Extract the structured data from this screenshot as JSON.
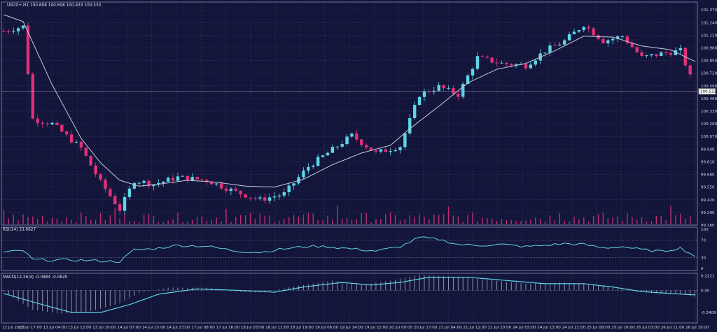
{
  "chart_data": {
    "type": "candlestick",
    "colors": {
      "background": "#13163a",
      "grid": "#3b4078",
      "up": "#5fd3e8",
      "down": "#e0307a",
      "ma": "#c8cad6",
      "rsi": "#5fd3e8",
      "macd_line": "#5fd3e8",
      "macd_hist": "#c8cad6",
      "price_box": "#ffffff"
    },
    "main": {
      "title": "USDX+,H1  100.608 100.608 100.433 100.533",
      "current_price": "100.533",
      "ylim": [
        99.16,
        101.45
      ],
      "y_ticks": [
        "101.370",
        "101.240",
        "101.110",
        "100.980",
        "100.850",
        "100.720",
        "100.590",
        "100.460",
        "100.330",
        "100.200",
        "100.070",
        "99.940",
        "99.810",
        "99.680",
        "99.550",
        "99.420",
        "99.290",
        "99.160"
      ],
      "grid": true
    },
    "x_ticks": [
      "12 Jul 2023",
      "12 Jul 17:00",
      "13 Jul 04:00",
      "13 Jul 12:00",
      "13 Jul 20:00",
      "14 Jul 07:00",
      "14 Jul 15:00",
      "14 Jul 23:00",
      "17 Jul 08:00",
      "17 Jul 16:00",
      "18 Jul 03:00",
      "18 Jul 11:00",
      "18 Jul 19:00",
      "19 Jul 06:00",
      "19 Jul 14:00",
      "19 Jul 22:00",
      "20 Jul 09:00",
      "20 Jul 17:00",
      "21 Jul 04:00",
      "21 Jul 12:00",
      "21 Jul 20:00",
      "24 Jul 05:00",
      "24 Jul 13:00",
      "24 Jul 21:00",
      "25 Jul 08:00",
      "25 Jul 16:00",
      "26 Jul 03:00",
      "26 Jul 11:00",
      "26 Jul 19:00"
    ],
    "price_path": [
      [
        0,
        101.15
      ],
      [
        4,
        101.2
      ],
      [
        6,
        100.25
      ],
      [
        10,
        100.2
      ],
      [
        16,
        99.95
      ],
      [
        20,
        99.6
      ],
      [
        24,
        99.32
      ],
      [
        27,
        99.62
      ],
      [
        31,
        99.58
      ],
      [
        36,
        99.65
      ],
      [
        42,
        99.62
      ],
      [
        48,
        99.5
      ],
      [
        53,
        99.42
      ],
      [
        58,
        99.48
      ],
      [
        63,
        99.76
      ],
      [
        67,
        99.9
      ],
      [
        72,
        100.08
      ],
      [
        77,
        99.9
      ],
      [
        82,
        99.97
      ],
      [
        86,
        100.5
      ],
      [
        90,
        100.58
      ],
      [
        94,
        100.5
      ],
      [
        98,
        100.88
      ],
      [
        103,
        100.82
      ],
      [
        108,
        100.8
      ],
      [
        112,
        100.95
      ],
      [
        116,
        101.05
      ],
      [
        120,
        101.22
      ],
      [
        124,
        101.05
      ],
      [
        128,
        101.1
      ],
      [
        132,
        100.88
      ],
      [
        136,
        100.92
      ],
      [
        140,
        100.95
      ],
      [
        143,
        100.55
      ]
    ],
    "ma_path": [
      [
        0,
        101.32
      ],
      [
        4,
        101.25
      ],
      [
        10,
        100.6
      ],
      [
        16,
        100.05
      ],
      [
        20,
        99.8
      ],
      [
        24,
        99.62
      ],
      [
        28,
        99.56
      ],
      [
        32,
        99.58
      ],
      [
        38,
        99.62
      ],
      [
        44,
        99.6
      ],
      [
        50,
        99.56
      ],
      [
        56,
        99.55
      ],
      [
        62,
        99.63
      ],
      [
        68,
        99.78
      ],
      [
        74,
        99.9
      ],
      [
        80,
        99.98
      ],
      [
        84,
        100.15
      ],
      [
        90,
        100.38
      ],
      [
        96,
        100.62
      ],
      [
        102,
        100.76
      ],
      [
        108,
        100.82
      ],
      [
        114,
        100.95
      ],
      [
        120,
        101.1
      ],
      [
        126,
        101.09
      ],
      [
        132,
        101.0
      ],
      [
        138,
        100.96
      ],
      [
        143,
        100.84
      ]
    ],
    "rsi": {
      "title": "RSI(14) 33.6627",
      "ylim": [
        0,
        100
      ],
      "levels": [
        70,
        30
      ],
      "y_ticks": [
        "100",
        "70",
        "30",
        "0"
      ],
      "path": [
        [
          0,
          42
        ],
        [
          4,
          46
        ],
        [
          6,
          25
        ],
        [
          10,
          24
        ],
        [
          16,
          24
        ],
        [
          20,
          22
        ],
        [
          24,
          21
        ],
        [
          27,
          48
        ],
        [
          31,
          50
        ],
        [
          36,
          58
        ],
        [
          42,
          56
        ],
        [
          48,
          45
        ],
        [
          53,
          42
        ],
        [
          58,
          50
        ],
        [
          63,
          56
        ],
        [
          67,
          55
        ],
        [
          72,
          50
        ],
        [
          77,
          45
        ],
        [
          82,
          55
        ],
        [
          86,
          76
        ],
        [
          90,
          72
        ],
        [
          94,
          60
        ],
        [
          98,
          58
        ],
        [
          103,
          60
        ],
        [
          108,
          55
        ],
        [
          112,
          58
        ],
        [
          116,
          62
        ],
        [
          120,
          60
        ],
        [
          124,
          52
        ],
        [
          128,
          55
        ],
        [
          132,
          48
        ],
        [
          136,
          44
        ],
        [
          140,
          52
        ],
        [
          143,
          33.66
        ]
      ]
    },
    "macd": {
      "title": "MACD(12,26,9) -0.0984 -0.0620",
      "ylim": [
        -0.5,
        0.26
      ],
      "y_ticks": [
        "0.2221",
        "0.00",
        "-0.3408"
      ],
      "signal_path": [
        [
          0,
          -0.05
        ],
        [
          8,
          -0.22
        ],
        [
          14,
          -0.34
        ],
        [
          20,
          -0.34
        ],
        [
          26,
          -0.22
        ],
        [
          32,
          -0.06
        ],
        [
          40,
          0.02
        ],
        [
          48,
          0.0
        ],
        [
          56,
          -0.03
        ],
        [
          62,
          0.05
        ],
        [
          70,
          0.12
        ],
        [
          76,
          0.08
        ],
        [
          82,
          0.12
        ],
        [
          88,
          0.2
        ],
        [
          96,
          0.2
        ],
        [
          104,
          0.15
        ],
        [
          112,
          0.1
        ],
        [
          120,
          0.1
        ],
        [
          126,
          0.05
        ],
        [
          132,
          -0.02
        ],
        [
          138,
          -0.05
        ],
        [
          143,
          -0.07
        ]
      ],
      "hist_path": [
        [
          0,
          -0.02
        ],
        [
          6,
          -0.3
        ],
        [
          12,
          -0.36
        ],
        [
          18,
          -0.32
        ],
        [
          24,
          -0.2
        ],
        [
          28,
          -0.04
        ],
        [
          34,
          0.04
        ],
        [
          42,
          0.04
        ],
        [
          48,
          -0.02
        ],
        [
          54,
          -0.03
        ],
        [
          60,
          0.06
        ],
        [
          68,
          0.15
        ],
        [
          74,
          0.08
        ],
        [
          80,
          0.15
        ],
        [
          86,
          0.24
        ],
        [
          94,
          0.2
        ],
        [
          100,
          0.16
        ],
        [
          108,
          0.1
        ],
        [
          116,
          0.12
        ],
        [
          122,
          0.08
        ],
        [
          128,
          0.02
        ],
        [
          134,
          -0.04
        ],
        [
          140,
          -0.06
        ],
        [
          143,
          -0.1
        ]
      ]
    }
  }
}
